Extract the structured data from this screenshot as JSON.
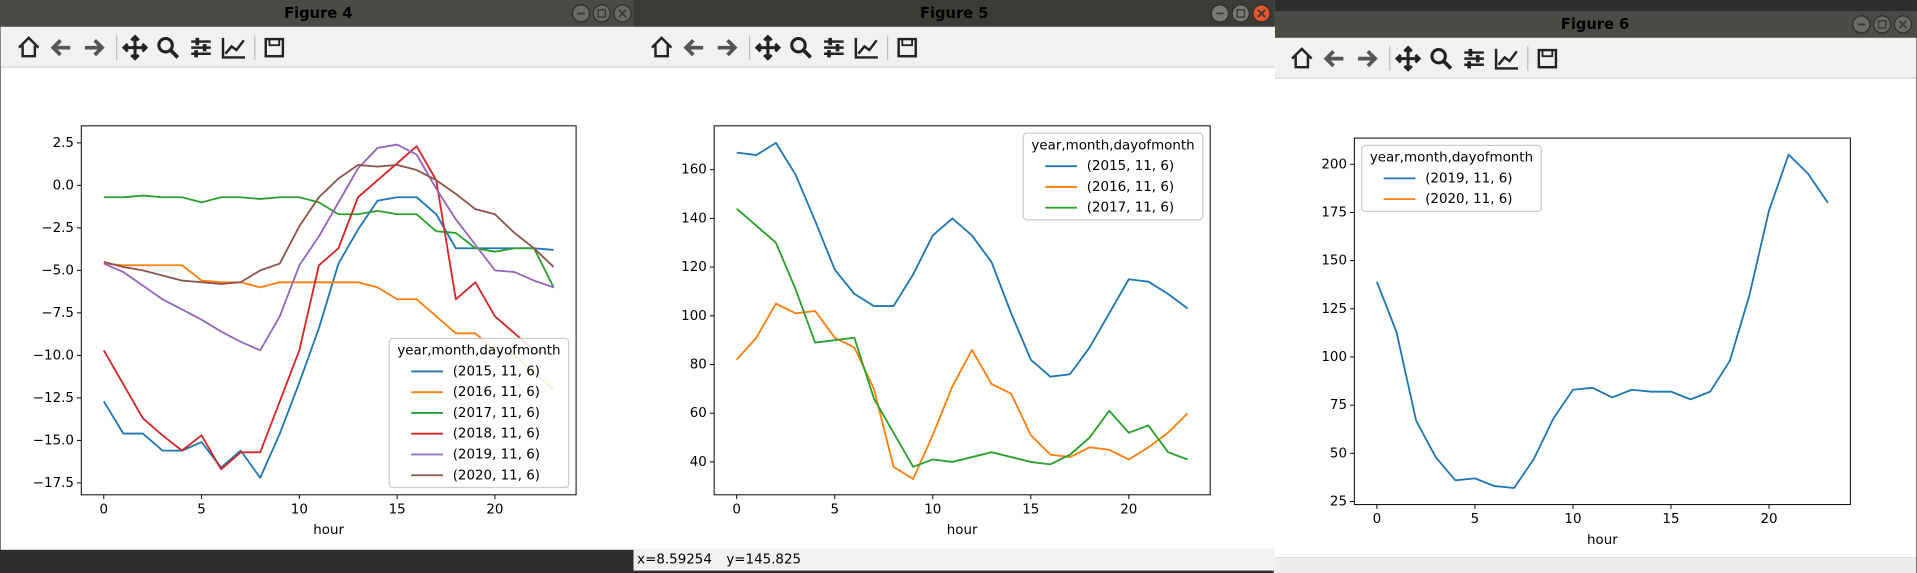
{
  "windows": [
    {
      "title": "Figure 4",
      "chart_data": {
        "type": "line",
        "xlabel": "hour",
        "x": [
          0,
          1,
          2,
          3,
          4,
          5,
          6,
          7,
          8,
          9,
          10,
          11,
          12,
          13,
          14,
          15,
          16,
          17,
          18,
          19,
          20,
          21,
          22,
          23
        ],
        "xlim": [
          -1.15,
          24.15
        ],
        "xticks": [
          0,
          5,
          10,
          15,
          20
        ],
        "ylim": [
          -18.2,
          3.5
        ],
        "yticks": [
          {
            "value": -17.5,
            "label": "−17.5"
          },
          {
            "value": -15,
            "label": "−15.0"
          },
          {
            "value": -12.5,
            "label": "−12.5"
          },
          {
            "value": -10,
            "label": "−10.0"
          },
          {
            "value": -7.5,
            "label": "−7.5"
          },
          {
            "value": -5,
            "label": "−5.0"
          },
          {
            "value": -2.5,
            "label": "−2.5"
          },
          {
            "value": 0,
            "label": "0.0"
          },
          2.5
        ],
        "legend_title": "year,month,dayofmonth",
        "legend_loc": "lower right",
        "series": [
          {
            "name": "(2015, 11, 6)",
            "color": "#1f77b4",
            "values": [
              -12.7,
              -14.6,
              -14.6,
              -15.6,
              -15.6,
              -15.1,
              -16.6,
              -15.6,
              -17.2,
              -14.6,
              -11.6,
              -8.4,
              -4.6,
              -2.6,
              -0.9,
              -0.7,
              -0.7,
              -1.7,
              -3.7,
              -3.7,
              -3.7,
              -3.7,
              -3.7,
              -3.8
            ]
          },
          {
            "name": "(2016, 11, 6)",
            "color": "#ff7f0e",
            "values": [
              -4.6,
              -4.7,
              -4.7,
              -4.7,
              -4.7,
              -5.6,
              -5.7,
              -5.7,
              -6.0,
              -5.7,
              -5.7,
              -5.7,
              -5.7,
              -5.7,
              -6.0,
              -6.7,
              -6.7,
              -7.7,
              -8.7,
              -8.7,
              -9.7,
              -10.0,
              -11.0,
              -12.0
            ]
          },
          {
            "name": "(2017, 11, 6)",
            "color": "#2ca02c",
            "values": [
              -0.7,
              -0.7,
              -0.6,
              -0.7,
              -0.7,
              -1.0,
              -0.7,
              -0.7,
              -0.8,
              -0.7,
              -0.7,
              -1.0,
              -1.7,
              -1.7,
              -1.5,
              -1.7,
              -1.7,
              -2.7,
              -2.8,
              -3.7,
              -3.9,
              -3.7,
              -3.7,
              -6.0
            ]
          },
          {
            "name": "(2018, 11, 6)",
            "color": "#d62728",
            "values": [
              -9.7,
              -11.7,
              -13.7,
              -14.7,
              -15.6,
              -14.7,
              -16.7,
              -15.7,
              -15.7,
              -12.7,
              -9.7,
              -4.7,
              -3.7,
              -0.7,
              0.3,
              1.3,
              2.3,
              0.3,
              -6.7,
              -5.7,
              -7.7,
              -8.7,
              -9.7,
              -10.0
            ]
          },
          {
            "name": "(2019, 11, 6)",
            "color": "#9467bd",
            "values": [
              -4.6,
              -5.1,
              -5.9,
              -6.7,
              -7.3,
              -7.9,
              -8.6,
              -9.2,
              -9.7,
              -7.7,
              -4.7,
              -3.0,
              -1.0,
              1.0,
              2.2,
              2.4,
              1.8,
              -0.2,
              -2.0,
              -3.5,
              -5.0,
              -5.1,
              -5.6,
              -6.0
            ]
          },
          {
            "name": "(2020, 11, 6)",
            "color": "#8c564b",
            "values": [
              -4.5,
              -4.8,
              -5.0,
              -5.3,
              -5.6,
              -5.7,
              -5.8,
              -5.7,
              -5.0,
              -4.6,
              -2.4,
              -0.7,
              0.4,
              1.2,
              1.1,
              1.2,
              0.9,
              0.3,
              -0.5,
              -1.4,
              -1.7,
              -2.8,
              -3.7,
              -4.8
            ]
          }
        ]
      }
    },
    {
      "title": "Figure 5",
      "status": {
        "x": "x=8.59254",
        "y": "y=145.825"
      },
      "chart_data": {
        "type": "line",
        "xlabel": "hour",
        "x": [
          0,
          1,
          2,
          3,
          4,
          5,
          6,
          7,
          8,
          9,
          10,
          11,
          12,
          13,
          14,
          15,
          16,
          17,
          18,
          19,
          20,
          21,
          22,
          23
        ],
        "xlim": [
          -1.15,
          24.15
        ],
        "xticks": [
          0,
          5,
          10,
          15,
          20
        ],
        "ylim": [
          26.5,
          178
        ],
        "yticks": [
          40,
          60,
          80,
          100,
          120,
          140,
          160
        ],
        "legend_title": "year,month,dayofmonth",
        "legend_loc": "upper right",
        "series": [
          {
            "name": "(2015, 11, 6)",
            "color": "#1f77b4",
            "values": [
              167,
              166,
              171,
              158,
              139,
              119,
              109,
              104,
              104,
              117,
              133,
              140,
              133,
              122,
              101,
              82,
              75,
              76,
              87,
              101,
              115,
              114,
              109,
              103
            ]
          },
          {
            "name": "(2016, 11, 6)",
            "color": "#ff7f0e",
            "values": [
              82,
              91,
              105,
              101,
              102,
              91,
              87,
              70,
              38,
              33,
              51,
              71,
              86,
              72,
              68,
              51,
              43,
              42,
              46,
              45,
              41,
              46,
              52,
              60
            ]
          },
          {
            "name": "(2017, 11, 6)",
            "color": "#2ca02c",
            "values": [
              144,
              137,
              130,
              111,
              89,
              90,
              91,
              66,
              52,
              38,
              41,
              40,
              42,
              44,
              42,
              40,
              39,
              43,
              50,
              61,
              52,
              55,
              44,
              41
            ]
          }
        ]
      }
    },
    {
      "title": "Figure 6",
      "chart_data": {
        "type": "line",
        "xlabel": "hour",
        "x": [
          0,
          1,
          2,
          3,
          4,
          5,
          6,
          7,
          8,
          9,
          10,
          11,
          12,
          13,
          14,
          15,
          16,
          17,
          18,
          19,
          20,
          21,
          22,
          23
        ],
        "xlim": [
          -1.15,
          24.15
        ],
        "xticks": [
          0,
          5,
          10,
          15,
          20
        ],
        "ylim": [
          23.4,
          213.6
        ],
        "yticks": [
          25,
          50,
          75,
          100,
          125,
          150,
          175,
          200
        ],
        "legend_title": "year,month,dayofmonth",
        "legend_loc": "upper left",
        "series": [
          {
            "name": "(2019, 11, 6)",
            "color": "#1f77b4",
            "values": [
              139,
              113,
              67,
              48,
              36,
              37,
              33,
              32,
              47,
              68,
              83,
              84,
              79,
              83,
              82,
              82,
              78,
              82,
              98,
              132,
              176,
              205,
              195,
              180
            ]
          },
          {
            "name": "(2020, 11, 6)",
            "color": "#ff7f0e",
            "values": [
              null,
              null,
              null,
              null,
              null,
              null,
              null,
              null,
              null,
              null,
              null,
              null,
              null,
              null,
              null,
              null,
              null,
              null,
              null,
              null,
              null,
              null,
              null,
              null
            ]
          }
        ]
      }
    }
  ]
}
